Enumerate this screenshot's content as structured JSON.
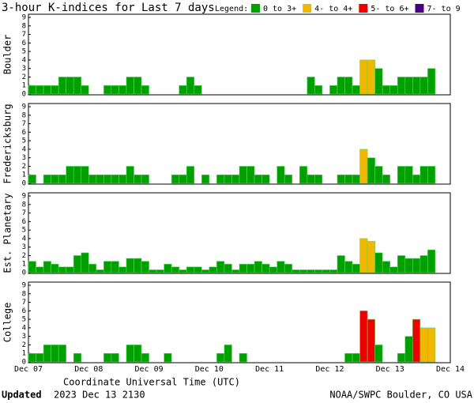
{
  "title": "3-hour K-indices for Last 7 days",
  "legend": {
    "label": "Legend:",
    "entries": [
      {
        "name": "0 to 3+",
        "color": "#00a000"
      },
      {
        "name": "4- to 4+",
        "color": "#f0b800"
      },
      {
        "name": "5- to 6+",
        "color": "#ee0000"
      },
      {
        "name": "7- to 9",
        "color": "#4b0082"
      }
    ]
  },
  "xaxis": {
    "label": "Coordinate Universal Time (UTC)",
    "ticks": [
      "Dec 07",
      "Dec 08",
      "Dec 09",
      "Dec 10",
      "Dec 11",
      "Dec 12",
      "Dec 13",
      "Dec 14"
    ]
  },
  "footer": {
    "updated_label": "Updated",
    "updated": "2023 Dec 13 2130",
    "source": "NOAA/SWPC Boulder, CO USA"
  },
  "chart_data": [
    {
      "type": "bar",
      "ylabel": "Boulder",
      "ylim": [
        0,
        9
      ],
      "yticks": [
        0,
        1,
        2,
        3,
        4,
        5,
        6,
        7,
        8,
        9
      ],
      "values": [
        1,
        1,
        1,
        1,
        2,
        2,
        2,
        1,
        0,
        0,
        1,
        1,
        1,
        2,
        2,
        1,
        0,
        0,
        0,
        0,
        1,
        2,
        1,
        0,
        0,
        0,
        0,
        0,
        0,
        0,
        0,
        0,
        0,
        0,
        0,
        0,
        0,
        2,
        1,
        0,
        1,
        2,
        2,
        1,
        4,
        4,
        3,
        1,
        1,
        2,
        2,
        2,
        2,
        3,
        0,
        0
      ],
      "colors": [
        "#00a000",
        "#00a000",
        "#00a000",
        "#00a000",
        "#00a000",
        "#00a000",
        "#00a000",
        "#00a000",
        "#00a000",
        "#00a000",
        "#00a000",
        "#00a000",
        "#00a000",
        "#00a000",
        "#00a000",
        "#00a000",
        "#00a000",
        "#00a000",
        "#00a000",
        "#00a000",
        "#00a000",
        "#00a000",
        "#00a000",
        "#00a000",
        "#00a000",
        "#00a000",
        "#00a000",
        "#00a000",
        "#00a000",
        "#00a000",
        "#00a000",
        "#00a000",
        "#00a000",
        "#00a000",
        "#00a000",
        "#00a000",
        "#00a000",
        "#00a000",
        "#00a000",
        "#00a000",
        "#00a000",
        "#00a000",
        "#00a000",
        "#00a000",
        "#f0b800",
        "#f0b800",
        "#00a000",
        "#00a000",
        "#00a000",
        "#00a000",
        "#00a000",
        "#00a000",
        "#00a000",
        "#00a000",
        "#00a000",
        "#00a000"
      ]
    },
    {
      "type": "bar",
      "ylabel": "Fredericksburg",
      "ylim": [
        0,
        9
      ],
      "yticks": [
        0,
        1,
        2,
        3,
        4,
        5,
        6,
        7,
        8,
        9
      ],
      "values": [
        1,
        0,
        1,
        1,
        1,
        2,
        2,
        2,
        1,
        1,
        1,
        1,
        1,
        2,
        1,
        1,
        0,
        0,
        0,
        1,
        1,
        2,
        0,
        1,
        0,
        1,
        1,
        1,
        2,
        2,
        1,
        1,
        0,
        2,
        1,
        0,
        2,
        1,
        1,
        0,
        0,
        1,
        1,
        1,
        4,
        3,
        2,
        1,
        0,
        2,
        2,
        1,
        2,
        2,
        0,
        0
      ],
      "colors": [
        "#00a000",
        "#00a000",
        "#00a000",
        "#00a000",
        "#00a000",
        "#00a000",
        "#00a000",
        "#00a000",
        "#00a000",
        "#00a000",
        "#00a000",
        "#00a000",
        "#00a000",
        "#00a000",
        "#00a000",
        "#00a000",
        "#00a000",
        "#00a000",
        "#00a000",
        "#00a000",
        "#00a000",
        "#00a000",
        "#00a000",
        "#00a000",
        "#00a000",
        "#00a000",
        "#00a000",
        "#00a000",
        "#00a000",
        "#00a000",
        "#00a000",
        "#00a000",
        "#00a000",
        "#00a000",
        "#00a000",
        "#00a000",
        "#00a000",
        "#00a000",
        "#00a000",
        "#00a000",
        "#00a000",
        "#00a000",
        "#00a000",
        "#00a000",
        "#f0b800",
        "#00a000",
        "#00a000",
        "#00a000",
        "#00a000",
        "#00a000",
        "#00a000",
        "#00a000",
        "#00a000",
        "#00a000",
        "#00a000",
        "#00a000"
      ]
    },
    {
      "type": "bar",
      "ylabel": "Est. Planetary",
      "ylim": [
        0,
        9
      ],
      "yticks": [
        0,
        1,
        2,
        3,
        4,
        5,
        6,
        7,
        8,
        9
      ],
      "values": [
        1.33,
        0.67,
        1.33,
        1,
        0.67,
        0.67,
        2,
        2.33,
        1,
        0.33,
        1.33,
        1.33,
        0.67,
        1.67,
        1.67,
        1.33,
        0.33,
        0.33,
        1,
        0.67,
        0.33,
        0.67,
        0.67,
        0.33,
        0.67,
        1.33,
        1,
        0.33,
        1,
        1,
        1.33,
        1,
        0.67,
        1.33,
        1,
        0.33,
        0.33,
        0.33,
        0.33,
        0.33,
        0.33,
        2,
        1.33,
        1,
        4,
        3.67,
        2.33,
        1.33,
        0.67,
        2,
        1.67,
        1.67,
        2,
        2.67,
        0,
        0
      ],
      "colors": [
        "#00a000",
        "#00a000",
        "#00a000",
        "#00a000",
        "#00a000",
        "#00a000",
        "#00a000",
        "#00a000",
        "#00a000",
        "#00a000",
        "#00a000",
        "#00a000",
        "#00a000",
        "#00a000",
        "#00a000",
        "#00a000",
        "#00a000",
        "#00a000",
        "#00a000",
        "#00a000",
        "#00a000",
        "#00a000",
        "#00a000",
        "#00a000",
        "#00a000",
        "#00a000",
        "#00a000",
        "#00a000",
        "#00a000",
        "#00a000",
        "#00a000",
        "#00a000",
        "#00a000",
        "#00a000",
        "#00a000",
        "#00a000",
        "#00a000",
        "#00a000",
        "#00a000",
        "#00a000",
        "#00a000",
        "#00a000",
        "#00a000",
        "#00a000",
        "#f0b800",
        "#f0b800",
        "#00a000",
        "#00a000",
        "#00a000",
        "#00a000",
        "#00a000",
        "#00a000",
        "#00a000",
        "#00a000",
        "#00a000",
        "#00a000"
      ]
    },
    {
      "type": "bar",
      "ylabel": "College",
      "ylim": [
        0,
        9
      ],
      "yticks": [
        0,
        1,
        2,
        3,
        4,
        5,
        6,
        7,
        8,
        9
      ],
      "values": [
        1,
        1,
        2,
        2,
        2,
        0,
        1,
        0,
        0,
        0,
        1,
        1,
        0,
        2,
        2,
        1,
        0,
        0,
        1,
        0,
        0,
        0,
        0,
        0,
        0,
        1,
        2,
        0,
        1,
        0,
        0,
        0,
        0,
        0,
        0,
        0,
        0,
        0,
        0,
        0,
        0,
        0,
        1,
        1,
        6,
        5,
        2,
        0,
        0,
        1,
        3,
        5,
        4,
        4,
        0,
        0
      ],
      "colors": [
        "#00a000",
        "#00a000",
        "#00a000",
        "#00a000",
        "#00a000",
        "#00a000",
        "#00a000",
        "#00a000",
        "#00a000",
        "#00a000",
        "#00a000",
        "#00a000",
        "#00a000",
        "#00a000",
        "#00a000",
        "#00a000",
        "#00a000",
        "#00a000",
        "#00a000",
        "#00a000",
        "#00a000",
        "#00a000",
        "#00a000",
        "#00a000",
        "#00a000",
        "#00a000",
        "#00a000",
        "#00a000",
        "#00a000",
        "#00a000",
        "#00a000",
        "#00a000",
        "#00a000",
        "#00a000",
        "#00a000",
        "#00a000",
        "#00a000",
        "#00a000",
        "#00a000",
        "#00a000",
        "#00a000",
        "#00a000",
        "#00a000",
        "#00a000",
        "#ee0000",
        "#ee0000",
        "#00a000",
        "#00a000",
        "#00a000",
        "#00a000",
        "#00a000",
        "#ee0000",
        "#f0b800",
        "#f0b800",
        "#00a000",
        "#00a000"
      ]
    }
  ]
}
